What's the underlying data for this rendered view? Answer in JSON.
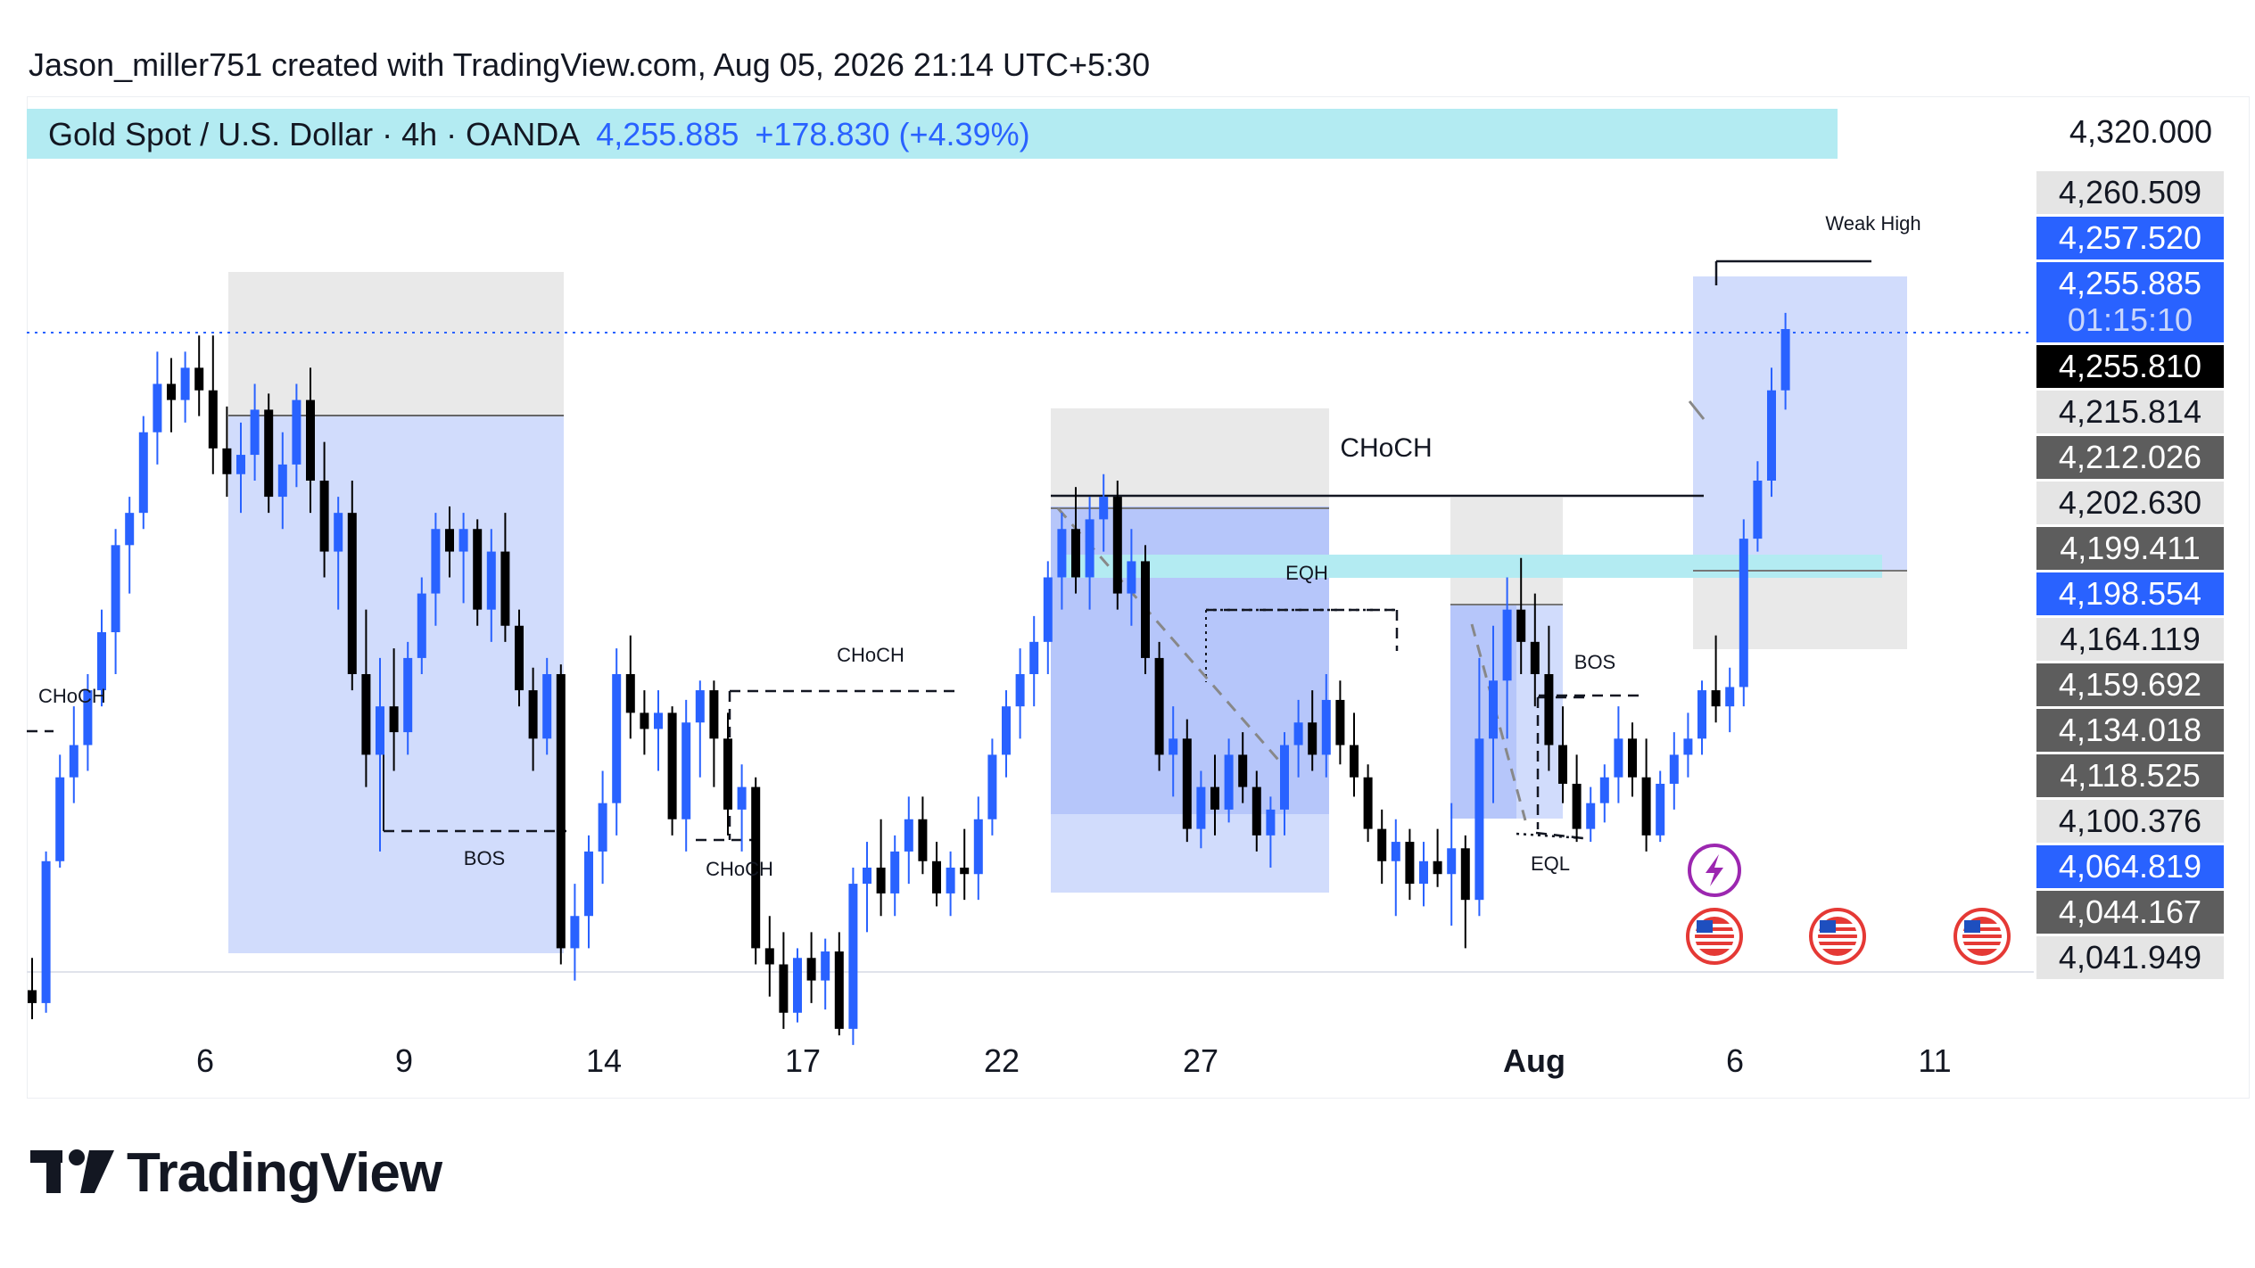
{
  "header": {
    "created_by": "Jason_miller751 created with TradingView.com, Aug 05, 2026 21:14 UTC+5:30"
  },
  "symbol": {
    "title": "Gold Spot / U.S. Dollar · 4h · OANDA",
    "last": "4,255.885",
    "change": "+178.830 (+4.39%)"
  },
  "brand": {
    "name": "TradingView"
  },
  "colors": {
    "up": "#2962ff",
    "down": "#000000",
    "zone_blue": "#c9d6fb",
    "zone_blue_strong": "#a9bcf9",
    "zone_grey": "#e5e5e5",
    "cyan": "#b3ebf2",
    "label_grey": "#5d5d5d"
  },
  "chart_data": {
    "type": "candlestick",
    "instrument": "Gold Spot / U.S. Dollar",
    "timeframe": "4h",
    "ylim": [
      4030,
      4330
    ],
    "y_top_label": "4,320.000",
    "x_ticks": [
      "6",
      "9",
      "14",
      "17",
      "22",
      "27",
      "Aug",
      "6",
      "11"
    ],
    "countdown": "01:15:10",
    "price_labels": [
      {
        "value": 4260.509,
        "text": "4,260.509",
        "style": "light"
      },
      {
        "value": 4257.52,
        "text": "4,257.520",
        "style": "blue"
      },
      {
        "value": 4255.885,
        "text": "4,255.885",
        "style": "blue"
      },
      {
        "value": 4255.81,
        "text": "4,255.810",
        "style": "black"
      },
      {
        "value": 4215.814,
        "text": "4,215.814",
        "style": "light"
      },
      {
        "value": 4212.026,
        "text": "4,212.026",
        "style": "grey"
      },
      {
        "value": 4202.63,
        "text": "4,202.630",
        "style": "light"
      },
      {
        "value": 4199.411,
        "text": "4,199.411",
        "style": "grey"
      },
      {
        "value": 4198.554,
        "text": "4,198.554",
        "style": "blue"
      },
      {
        "value": 4164.119,
        "text": "4,164.119",
        "style": "light"
      },
      {
        "value": 4159.692,
        "text": "4,159.692",
        "style": "grey"
      },
      {
        "value": 4134.018,
        "text": "4,134.018",
        "style": "grey"
      },
      {
        "value": 4118.525,
        "text": "4,118.525",
        "style": "grey"
      },
      {
        "value": 4100.376,
        "text": "4,100.376",
        "style": "light"
      },
      {
        "value": 4064.819,
        "text": "4,064.819",
        "style": "blue"
      },
      {
        "value": 4044.167,
        "text": "4,044.167",
        "style": "grey"
      },
      {
        "value": 4041.949,
        "text": "4,041.949",
        "style": "light"
      }
    ],
    "annotations": [
      {
        "text": "CHoCH",
        "cut": true
      },
      {
        "text": "CHoCH"
      },
      {
        "text": "BOS"
      },
      {
        "text": "CHoCH"
      },
      {
        "text": "EQH"
      },
      {
        "text": "CHoCH"
      },
      {
        "text": "BOS"
      },
      {
        "text": "EQL"
      },
      {
        "text": "Weak High"
      }
    ],
    "events": [
      "lightning-event-icon",
      "us-flag-icon",
      "us-flag-icon",
      "us-flag-icon"
    ],
    "ohlc": [
      [
        4052,
        4062,
        4043,
        4048
      ],
      [
        4048,
        4095,
        4045,
        4092
      ],
      [
        4092,
        4125,
        4090,
        4118
      ],
      [
        4118,
        4140,
        4110,
        4128
      ],
      [
        4128,
        4150,
        4120,
        4145
      ],
      [
        4145,
        4170,
        4140,
        4163
      ],
      [
        4163,
        4195,
        4150,
        4190
      ],
      [
        4190,
        4205,
        4175,
        4200
      ],
      [
        4200,
        4230,
        4195,
        4225
      ],
      [
        4225,
        4250,
        4215,
        4240
      ],
      [
        4240,
        4248,
        4225,
        4235
      ],
      [
        4235,
        4250,
        4228,
        4245
      ],
      [
        4245,
        4255,
        4230,
        4238
      ],
      [
        4238,
        4255,
        4212,
        4220
      ],
      [
        4220,
        4233,
        4205,
        4212
      ],
      [
        4212,
        4228,
        4200,
        4218
      ],
      [
        4218,
        4240,
        4210,
        4232
      ],
      [
        4232,
        4237,
        4200,
        4205
      ],
      [
        4205,
        4225,
        4195,
        4215
      ],
      [
        4215,
        4240,
        4208,
        4235
      ],
      [
        4235,
        4245,
        4200,
        4210
      ],
      [
        4210,
        4222,
        4180,
        4188
      ],
      [
        4188,
        4205,
        4170,
        4200
      ],
      [
        4200,
        4210,
        4145,
        4150
      ],
      [
        4150,
        4170,
        4115,
        4125
      ],
      [
        4125,
        4155,
        4095,
        4140
      ],
      [
        4140,
        4158,
        4120,
        4132
      ],
      [
        4132,
        4160,
        4125,
        4155
      ],
      [
        4155,
        4180,
        4150,
        4175
      ],
      [
        4175,
        4200,
        4165,
        4195
      ],
      [
        4195,
        4202,
        4180,
        4188
      ],
      [
        4188,
        4200,
        4172,
        4195
      ],
      [
        4195,
        4198,
        4165,
        4170
      ],
      [
        4170,
        4195,
        4160,
        4188
      ],
      [
        4188,
        4200,
        4160,
        4165
      ],
      [
        4165,
        4170,
        4140,
        4145
      ],
      [
        4145,
        4152,
        4120,
        4130
      ],
      [
        4130,
        4155,
        4125,
        4150
      ],
      [
        4150,
        4153,
        4060,
        4065
      ],
      [
        4065,
        4085,
        4055,
        4075
      ],
      [
        4075,
        4100,
        4065,
        4095
      ],
      [
        4095,
        4120,
        4085,
        4110
      ],
      [
        4110,
        4158,
        4100,
        4150
      ],
      [
        4150,
        4162,
        4130,
        4138
      ],
      [
        4138,
        4145,
        4125,
        4133
      ],
      [
        4133,
        4145,
        4120,
        4138
      ],
      [
        4138,
        4140,
        4100,
        4105
      ],
      [
        4105,
        4142,
        4095,
        4135
      ],
      [
        4135,
        4148,
        4118,
        4145
      ],
      [
        4145,
        4148,
        4115,
        4130
      ],
      [
        4130,
        4138,
        4100,
        4108
      ],
      [
        4108,
        4122,
        4095,
        4115
      ],
      [
        4115,
        4118,
        4060,
        4065
      ],
      [
        4065,
        4075,
        4050,
        4060
      ],
      [
        4060,
        4070,
        4040,
        4045
      ],
      [
        4045,
        4065,
        4042,
        4062
      ],
      [
        4062,
        4070,
        4048,
        4055
      ],
      [
        4055,
        4068,
        4046,
        4064
      ],
      [
        4064,
        4070,
        4038,
        4040
      ],
      [
        4040,
        4090,
        4035,
        4085
      ],
      [
        4085,
        4098,
        4070,
        4090
      ],
      [
        4090,
        4105,
        4075,
        4082
      ],
      [
        4082,
        4100,
        4075,
        4095
      ],
      [
        4095,
        4112,
        4085,
        4105
      ],
      [
        4105,
        4112,
        4088,
        4092
      ],
      [
        4092,
        4098,
        4078,
        4082
      ],
      [
        4082,
        4095,
        4075,
        4090
      ],
      [
        4090,
        4102,
        4080,
        4088
      ],
      [
        4088,
        4112,
        4080,
        4105
      ],
      [
        4105,
        4130,
        4100,
        4125
      ],
      [
        4125,
        4145,
        4118,
        4140
      ],
      [
        4140,
        4158,
        4130,
        4150
      ],
      [
        4150,
        4168,
        4140,
        4160
      ],
      [
        4160,
        4185,
        4150,
        4180
      ],
      [
        4180,
        4200,
        4170,
        4195
      ],
      [
        4195,
        4208,
        4175,
        4180
      ],
      [
        4180,
        4205,
        4170,
        4198
      ],
      [
        4198,
        4212,
        4188,
        4205
      ],
      [
        4205,
        4210,
        4170,
        4175
      ],
      [
        4175,
        4195,
        4165,
        4185
      ],
      [
        4185,
        4190,
        4150,
        4155
      ],
      [
        4155,
        4160,
        4120,
        4125
      ],
      [
        4125,
        4140,
        4112,
        4130
      ],
      [
        4130,
        4136,
        4098,
        4102
      ],
      [
        4102,
        4120,
        4096,
        4115
      ],
      [
        4115,
        4125,
        4100,
        4108
      ],
      [
        4108,
        4130,
        4104,
        4125
      ],
      [
        4125,
        4132,
        4110,
        4115
      ],
      [
        4115,
        4120,
        4095,
        4100
      ],
      [
        4100,
        4112,
        4090,
        4108
      ],
      [
        4108,
        4132,
        4100,
        4128
      ],
      [
        4128,
        4142,
        4118,
        4135
      ],
      [
        4135,
        4145,
        4120,
        4125
      ],
      [
        4125,
        4150,
        4118,
        4142
      ],
      [
        4142,
        4148,
        4122,
        4128
      ],
      [
        4128,
        4138,
        4112,
        4118
      ],
      [
        4118,
        4122,
        4098,
        4102
      ],
      [
        4102,
        4108,
        4085,
        4092
      ],
      [
        4092,
        4105,
        4075,
        4098
      ],
      [
        4098,
        4102,
        4080,
        4085
      ],
      [
        4085,
        4098,
        4078,
        4092
      ],
      [
        4092,
        4102,
        4084,
        4088
      ],
      [
        4088,
        4110,
        4072,
        4096
      ],
      [
        4096,
        4100,
        4065,
        4080
      ],
      [
        4080,
        4155,
        4075,
        4130
      ],
      [
        4130,
        4165,
        4110,
        4148
      ],
      [
        4148,
        4180,
        4130,
        4170
      ],
      [
        4170,
        4186,
        4150,
        4160
      ],
      [
        4160,
        4175,
        4140,
        4150
      ],
      [
        4150,
        4165,
        4120,
        4128
      ],
      [
        4128,
        4140,
        4110,
        4116
      ],
      [
        4116,
        4125,
        4098,
        4102
      ],
      [
        4102,
        4115,
        4098,
        4110
      ],
      [
        4110,
        4122,
        4104,
        4118
      ],
      [
        4118,
        4140,
        4110,
        4130
      ],
      [
        4130,
        4135,
        4112,
        4118
      ],
      [
        4118,
        4130,
        4095,
        4100
      ],
      [
        4100,
        4120,
        4098,
        4116
      ],
      [
        4116,
        4132,
        4108,
        4125
      ],
      [
        4125,
        4138,
        4118,
        4130
      ],
      [
        4130,
        4148,
        4125,
        4145
      ],
      [
        4145,
        4162,
        4135,
        4140
      ],
      [
        4140,
        4152,
        4132,
        4146
      ],
      [
        4146,
        4198,
        4140,
        4192
      ],
      [
        4192,
        4216,
        4188,
        4210
      ],
      [
        4210,
        4245,
        4205,
        4238
      ],
      [
        4238,
        4262,
        4232,
        4257
      ]
    ]
  }
}
